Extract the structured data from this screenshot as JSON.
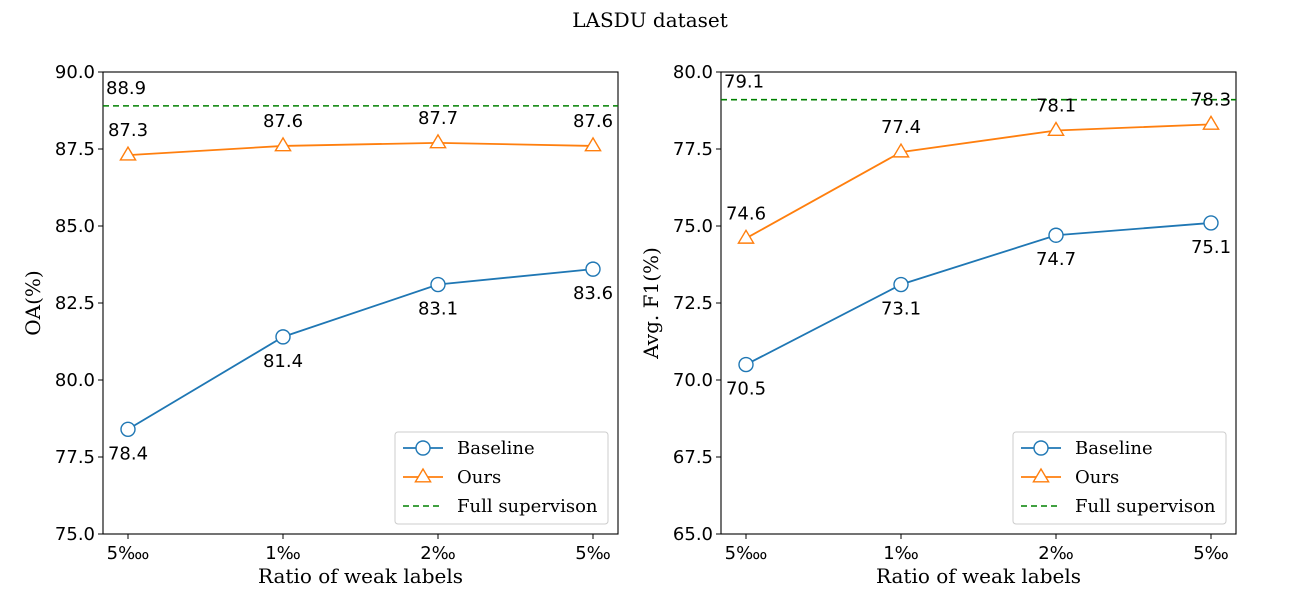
{
  "suptitle": "LASDU dataset",
  "chart_data": [
    {
      "type": "line",
      "categories": [
        "5‱",
        "1‰",
        "2‰",
        "5‰"
      ],
      "xlabel": "Ratio of weak labels",
      "ylabel": "OA(%)",
      "ylim": [
        75.0,
        90.0
      ],
      "yticks": [
        "75.0",
        "77.5",
        "80.0",
        "82.5",
        "85.0",
        "87.5",
        "90.0"
      ],
      "series": [
        {
          "name": "Baseline",
          "values": [
            78.4,
            81.4,
            83.1,
            83.6
          ],
          "labels": [
            "78.4",
            "81.4",
            "83.1",
            "83.6"
          ],
          "color": "#1f77b4",
          "marker": "circle",
          "label_position": "below"
        },
        {
          "name": "Ours",
          "values": [
            87.3,
            87.6,
            87.7,
            87.6
          ],
          "labels": [
            "87.3",
            "87.6",
            "87.7",
            "87.6"
          ],
          "color": "#ff7f0e",
          "marker": "triangle",
          "label_position": "above"
        }
      ],
      "reference": {
        "name": "Full supervison",
        "value": 88.9,
        "label": "88.9",
        "color": "#008000",
        "style": "dashed"
      },
      "legend_position": "lower-right"
    },
    {
      "type": "line",
      "categories": [
        "5‱",
        "1‰",
        "2‰",
        "5‰"
      ],
      "xlabel": "Ratio of weak labels",
      "ylabel": "Avg. F1(%)",
      "ylim": [
        65.0,
        80.0
      ],
      "yticks": [
        "65.0",
        "67.5",
        "70.0",
        "72.5",
        "75.0",
        "77.5",
        "80.0"
      ],
      "series": [
        {
          "name": "Baseline",
          "values": [
            70.5,
            73.1,
            74.7,
            75.1
          ],
          "labels": [
            "70.5",
            "73.1",
            "74.7",
            "75.1"
          ],
          "color": "#1f77b4",
          "marker": "circle",
          "label_position": "below"
        },
        {
          "name": "Ours",
          "values": [
            74.6,
            77.4,
            78.1,
            78.3
          ],
          "labels": [
            "74.6",
            "77.4",
            "78.1",
            "78.3"
          ],
          "color": "#ff7f0e",
          "marker": "triangle",
          "label_position": "above"
        }
      ],
      "reference": {
        "name": "Full supervison",
        "value": 79.1,
        "label": "79.1",
        "color": "#008000",
        "style": "dashed"
      },
      "legend_position": "lower-right"
    }
  ]
}
